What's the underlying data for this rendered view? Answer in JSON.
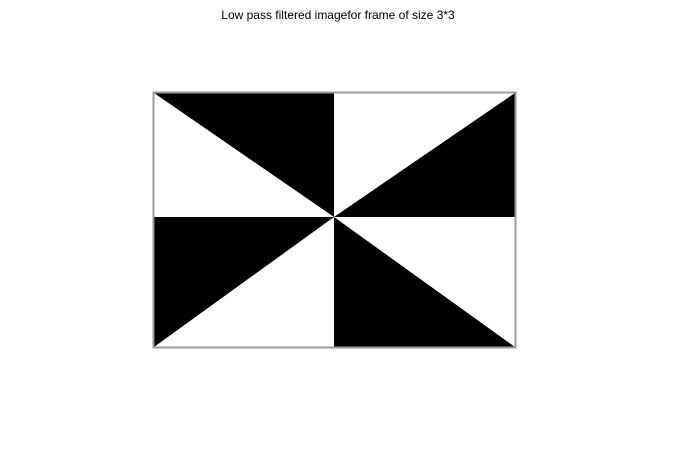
{
  "figure": {
    "title": "Low pass filtered imagefor frame of size 3*3"
  },
  "image": {
    "pattern": "pinwheel of alternating black and white triangles",
    "colors": {
      "fill_dark": "#000000",
      "fill_light": "#ffffff",
      "border": "#9a9a9a"
    }
  }
}
